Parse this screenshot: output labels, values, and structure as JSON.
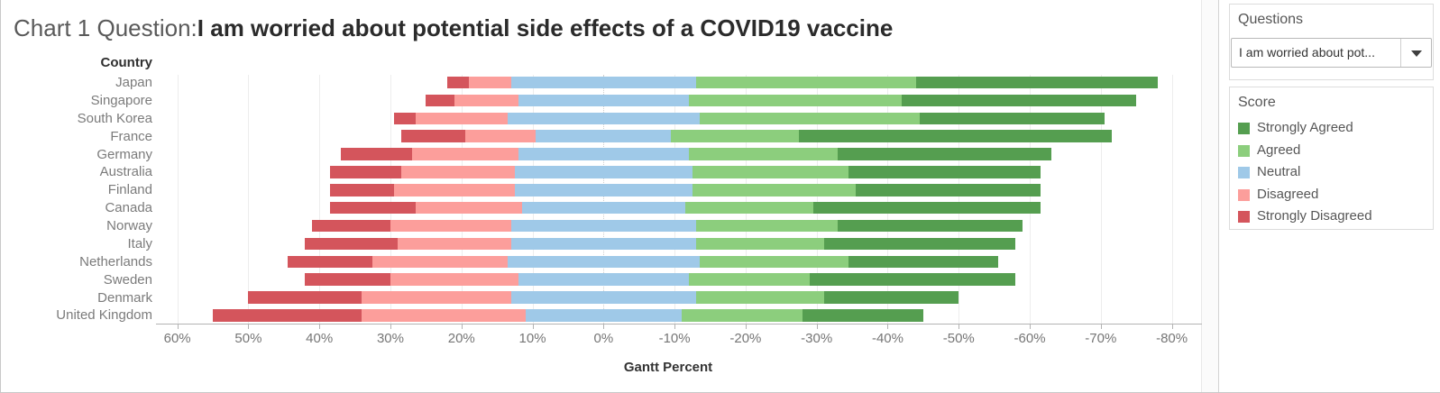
{
  "header": {
    "title_prefix": "Chart 1 Question:",
    "title_question": "I am worried about potential side effects of a COVID19 vaccine"
  },
  "panel": {
    "questions_title": "Questions",
    "dropdown_value": "I am worried about pot...",
    "dropdown_icon": "caret-down-icon",
    "score_title": "Score"
  },
  "legend": {
    "items": [
      {
        "label": "Strongly Agreed",
        "color": "#559e50"
      },
      {
        "label": "Agreed",
        "color": "#8cce7d"
      },
      {
        "label": "Neutral",
        "color": "#9fc9e8"
      },
      {
        "label": "Disagreed",
        "color": "#fc9e9b"
      },
      {
        "label": "Strongly Disagreed",
        "color": "#d4555c"
      }
    ]
  },
  "chart_data": {
    "type": "bar",
    "variant": "diverging-stacked-horizontal",
    "alignment": "neutral_centered_on_zero",
    "title": "Chart 1 Question: I am worried about potential side effects of a COVID19 vaccine",
    "xlabel": "Gantt Percent",
    "ylabel": "Country",
    "x_domain": [
      63,
      -85
    ],
    "x_tick_values": [
      60,
      50,
      40,
      30,
      20,
      10,
      0,
      -10,
      -20,
      -30,
      -40,
      -50,
      -60,
      -70,
      -80
    ],
    "x_tick_labels": [
      "60%",
      "50%",
      "40%",
      "30%",
      "20%",
      "10%",
      "0%",
      "-10%",
      "-20%",
      "-30%",
      "-40%",
      "-50%",
      "-60%",
      "-70%",
      "-80%"
    ],
    "grid": true,
    "legend_position": "right",
    "categories": [
      "Japan",
      "Singapore",
      "South Korea",
      "France",
      "Germany",
      "Australia",
      "Finland",
      "Canada",
      "Norway",
      "Italy",
      "Netherlands",
      "Sweden",
      "Denmark",
      "United Kingdom"
    ],
    "series": [
      {
        "name": "Strongly Disagreed",
        "color": "#d4555c",
        "values": [
          3,
          4,
          3,
          9,
          10,
          10,
          9,
          12,
          11,
          13,
          12,
          12,
          16,
          21
        ]
      },
      {
        "name": "Disagreed",
        "color": "#fc9e9b",
        "values": [
          6,
          9,
          13,
          10,
          15,
          16,
          17,
          15,
          17,
          16,
          19,
          18,
          21,
          23
        ]
      },
      {
        "name": "Neutral",
        "color": "#9fc9e8",
        "values": [
          26,
          24,
          27,
          19,
          24,
          25,
          25,
          23,
          26,
          26,
          27,
          24,
          26,
          22
        ]
      },
      {
        "name": "Agreed",
        "color": "#8cce7d",
        "values": [
          31,
          30,
          31,
          18,
          21,
          22,
          23,
          18,
          20,
          18,
          21,
          17,
          18,
          17
        ]
      },
      {
        "name": "Strongly Agreed",
        "color": "#559e50",
        "values": [
          34,
          33,
          26,
          44,
          30,
          27,
          26,
          32,
          26,
          27,
          21,
          29,
          19,
          17
        ]
      }
    ]
  }
}
